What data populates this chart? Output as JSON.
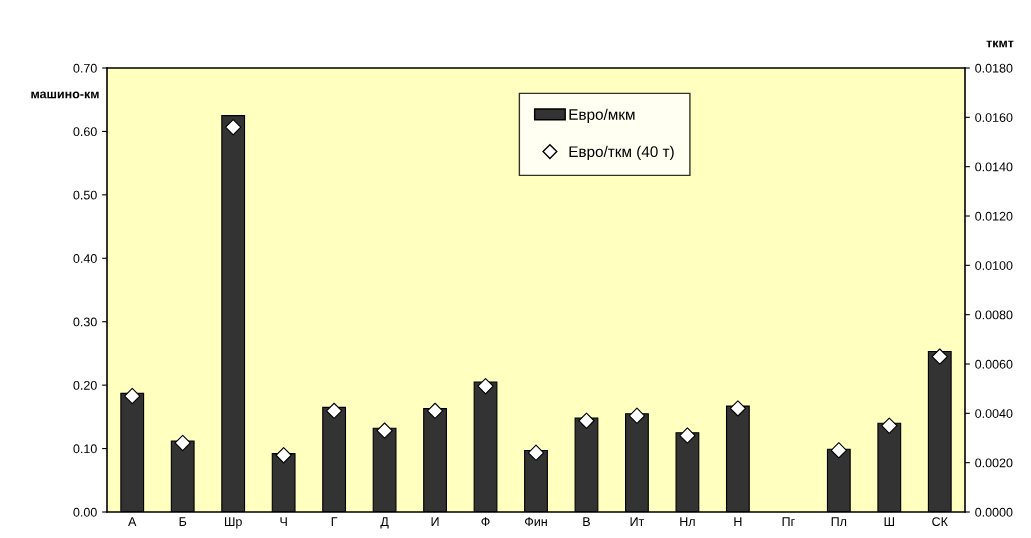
{
  "chart_data": {
    "type": "bar",
    "ylabel": "машино-км",
    "y2label": "ткмт",
    "categories": [
      "А",
      "Б",
      "Шр",
      "Ч",
      "Г",
      "Д",
      "И",
      "Ф",
      "Фин",
      "В",
      "Ит",
      "Нл",
      "Н",
      "Пг",
      "Пл",
      "Ш",
      "СК"
    ],
    "series": [
      {
        "name": "Евро/мкм",
        "color": "#333333",
        "values": [
          0.187,
          0.112,
          0.625,
          0.092,
          0.165,
          0.132,
          0.163,
          0.205,
          0.097,
          0.148,
          0.155,
          0.125,
          0.167,
          null,
          0.099,
          0.14,
          0.253
        ]
      },
      {
        "name": "Евро/ткм (40 т)",
        "type": "scatter",
        "axis": "y2",
        "color": "#ffffff",
        "marker": "diamond",
        "values": [
          0.0047,
          0.0028,
          0.0156,
          0.0023,
          0.0041,
          0.0033,
          0.0041,
          0.0051,
          0.0024,
          0.0037,
          0.0039,
          0.0031,
          0.0042,
          null,
          0.0025,
          0.0035,
          0.0063
        ]
      }
    ],
    "ylim": [
      0,
      0.7
    ],
    "yticks": [
      {
        "value": 0,
        "label": "0.00"
      },
      {
        "value": 0.1,
        "label": "0.10"
      },
      {
        "value": 0.2,
        "label": "0.20"
      },
      {
        "value": 0.3,
        "label": "0.30"
      },
      {
        "value": 0.4,
        "label": "0.40"
      },
      {
        "value": 0.5,
        "label": "0.50"
      },
      {
        "value": 0.6,
        "label": "0.60"
      },
      {
        "value": 0.7,
        "label": "0.70"
      }
    ],
    "y2lim": [
      0,
      0.018
    ],
    "y2ticks": [
      {
        "value": 0,
        "label": "0.0000"
      },
      {
        "value": 0.002,
        "label": "0.0020"
      },
      {
        "value": 0.004,
        "label": "0.0040"
      },
      {
        "value": 0.006,
        "label": "0.0060"
      },
      {
        "value": 0.008,
        "label": "0.0080"
      },
      {
        "value": 0.01,
        "label": "0.0100"
      },
      {
        "value": 0.012,
        "label": "0.0120"
      },
      {
        "value": 0.014,
        "label": "0.0140"
      },
      {
        "value": 0.016,
        "label": "0.0160"
      },
      {
        "value": 0.018,
        "label": "0.0180"
      }
    ],
    "grid": false,
    "legend": "top"
  }
}
